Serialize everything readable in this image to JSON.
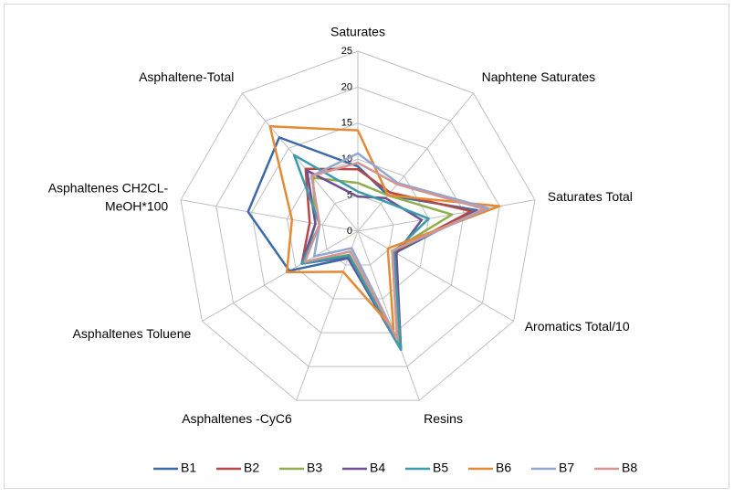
{
  "chart_data": {
    "type": "radar",
    "categories": [
      "Saturates",
      "Naphtene Saturates",
      "Saturates Total",
      "Aromatics Total/10",
      "Resins",
      "Asphaltenes -CyC6",
      "Asphaltenes Toluene",
      [
        "Asphaltenes  CH2CL-",
        "MeOH*100"
      ],
      "Asphaltene-Total"
    ],
    "rlim": [
      0,
      25
    ],
    "rticks": [
      0,
      5,
      10,
      15,
      20,
      25
    ],
    "grid": true,
    "legend": "bottom",
    "series": [
      {
        "name": "B1",
        "color": "#3c6aa8",
        "values": [
          9,
          6.5,
          16.8,
          6,
          17.5,
          4,
          11,
          15.5,
          17
        ]
      },
      {
        "name": "B2",
        "color": "#b54745",
        "values": [
          8.6,
          7,
          16,
          5.8,
          16.5,
          3.8,
          9,
          6.8,
          11.3
        ]
      },
      {
        "name": "B3",
        "color": "#8fae4e",
        "values": [
          6.7,
          6.5,
          13.3,
          5.5,
          16.5,
          3.5,
          8.5,
          6,
          9.7
        ]
      },
      {
        "name": "B4",
        "color": "#6e4f91",
        "values": [
          4.8,
          6,
          9,
          6.2,
          17.5,
          3.8,
          9,
          6,
          11
        ]
      },
      {
        "name": "B5",
        "color": "#3b9bae",
        "values": [
          5.5,
          5.5,
          10,
          5.8,
          17.5,
          3.6,
          9,
          5.4,
          13.8
        ]
      },
      {
        "name": "B6",
        "color": "#e48a34",
        "values": [
          14,
          6.5,
          20,
          4.8,
          14.5,
          6,
          11.4,
          9.3,
          19
        ]
      },
      {
        "name": "B7",
        "color": "#91a7d0",
        "values": [
          10.8,
          8.7,
          18.4,
          5.5,
          16,
          2.5,
          7,
          5.4,
          10
        ]
      },
      {
        "name": "B8",
        "color": "#d39593",
        "values": [
          9.5,
          8.5,
          17.8,
          5.5,
          16,
          3,
          8.5,
          5.4,
          10
        ]
      }
    ]
  }
}
